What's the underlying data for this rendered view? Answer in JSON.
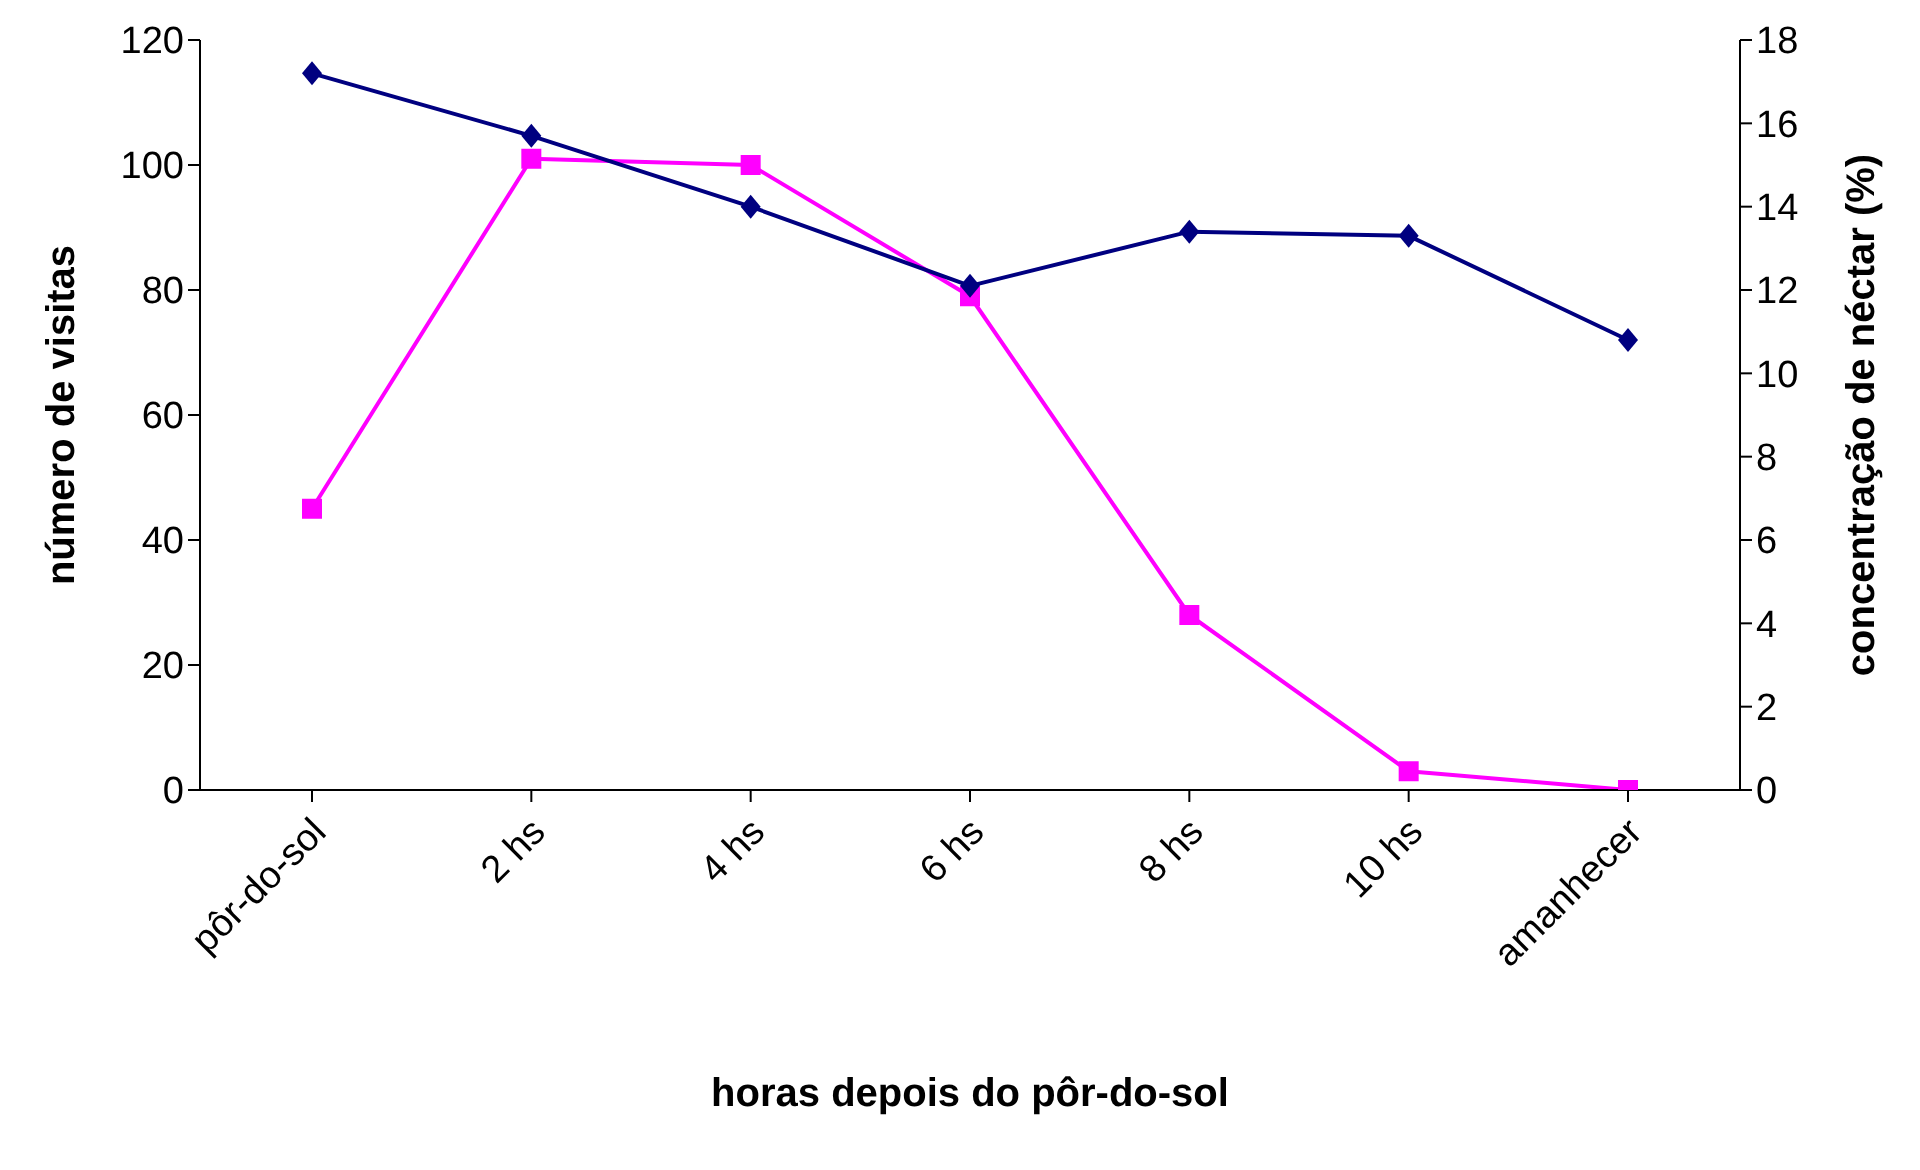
{
  "chart_data": {
    "type": "line",
    "xlabel": "horas depois do pôr-do-sol",
    "ylabel": "número de visitas",
    "y2label": "concentração de néctar (%)",
    "categories": [
      "pôr-do-sol",
      "2 hs",
      "4 hs",
      "6 hs",
      "8 hs",
      "10 hs",
      "amanhecer"
    ],
    "series": [
      {
        "color": "#ff00ff",
        "marker": "square",
        "values": [
          45,
          101,
          100,
          79,
          28,
          3,
          0
        ]
      },
      {
        "color": "#000080",
        "marker": "diamond",
        "axis": "y2",
        "values": [
          17.2,
          15.7,
          14,
          12.1,
          13.4,
          13.3,
          10.8
        ]
      }
    ],
    "ylim": [
      0,
      120
    ],
    "yticks": [
      0,
      20,
      40,
      60,
      80,
      100,
      120
    ],
    "y2lim": [
      0,
      18
    ],
    "y2ticks": [
      0,
      2,
      4,
      6,
      8,
      10,
      12,
      14,
      16,
      18
    ],
    "grid": false,
    "legend": false,
    "line_style": "solid"
  }
}
